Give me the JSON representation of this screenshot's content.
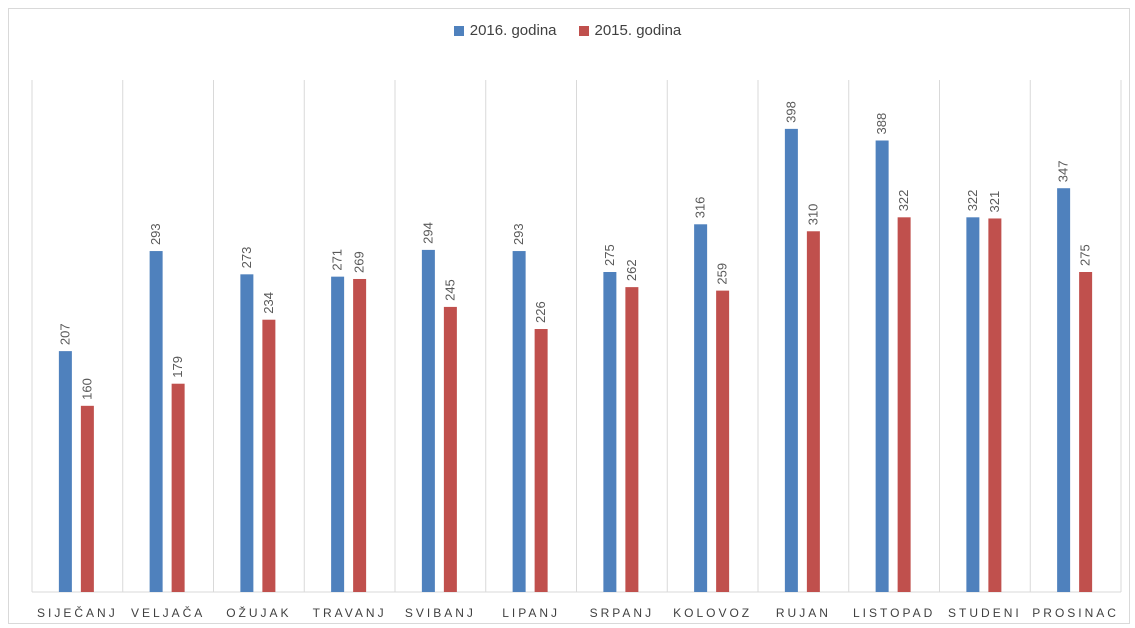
{
  "chart_data": {
    "type": "bar",
    "categories": [
      "SIJEČANJ",
      "VELJAČA",
      "OŽUJAK",
      "TRAVANJ",
      "SVIBANJ",
      "LIPANJ",
      "SRPANJ",
      "KOLOVOZ",
      "RUJAN",
      "LISTOPAD",
      "STUDENI",
      "PROSINAC"
    ],
    "series": [
      {
        "name": "2016. godina",
        "color": "#4f81bd",
        "values": [
          207,
          293,
          273,
          271,
          294,
          293,
          275,
          316,
          398,
          388,
          322,
          347
        ]
      },
      {
        "name": "2015. godina",
        "color": "#c0504d",
        "values": [
          160,
          179,
          234,
          269,
          245,
          226,
          262,
          259,
          310,
          322,
          321,
          275
        ]
      }
    ],
    "title": "",
    "xlabel": "",
    "ylabel": "",
    "ylim": [
      0,
      440
    ],
    "grid": "vertical category separators",
    "legend_position": "top-center",
    "data_labels": "rotated vertical above bars"
  }
}
